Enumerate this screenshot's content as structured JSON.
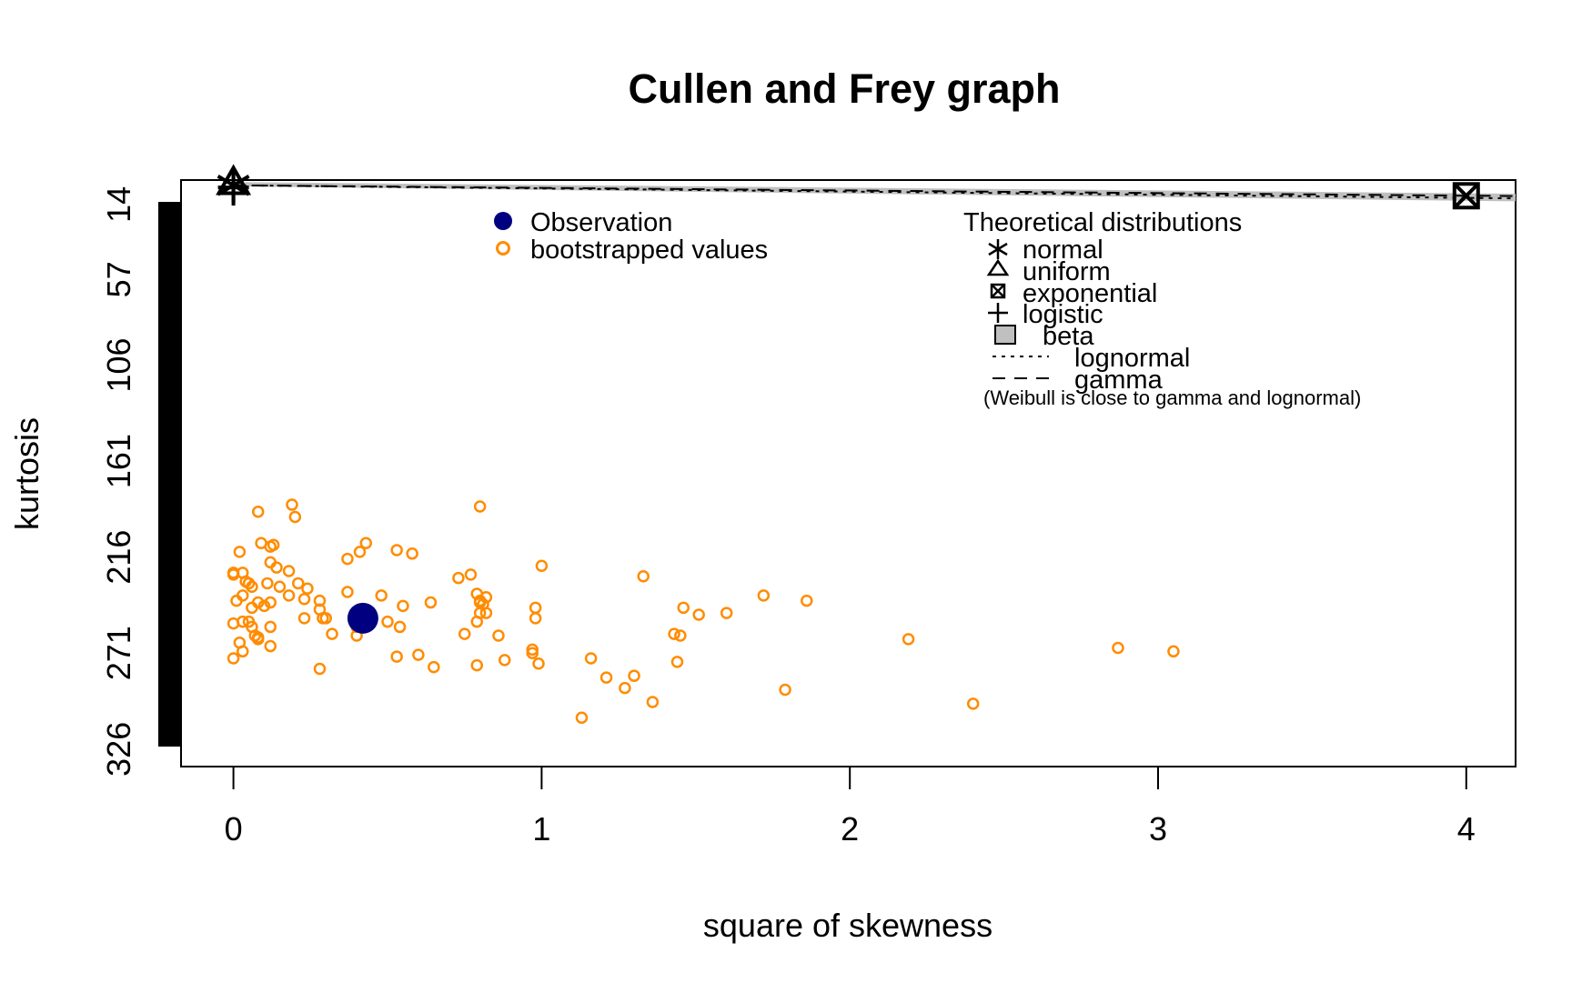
{
  "chart_data": {
    "type": "scatter",
    "title": "Cullen and Frey graph",
    "xlabel": "square of skewness",
    "ylabel": "kurtosis",
    "xlim": [
      -0.17,
      4.16
    ],
    "ylim": [
      336,
      0
    ],
    "x_ticks": [
      0,
      1,
      2,
      3,
      4
    ],
    "x_tick_labels": [
      "0",
      "1",
      "2",
      "3",
      "4"
    ],
    "y_ticks": [
      14,
      57,
      106,
      161,
      216,
      271,
      326
    ],
    "y_tick_labels": [
      "14",
      "57",
      "106",
      "161",
      "216",
      "271",
      "326"
    ],
    "observation": {
      "x": 0.42,
      "y": 251
    },
    "bootstrapped": {
      "color": "#ff8c00",
      "x": [
        0.08,
        0.19,
        0.2,
        0.02,
        0.09,
        0.12,
        0.13,
        0.12,
        0.14,
        0.0,
        0.03,
        0.18,
        0.05,
        0.11,
        0.15,
        0.21,
        0.24,
        0.18,
        0.0,
        0.04,
        0.06,
        0.03,
        0.01,
        0.08,
        0.06,
        0.1,
        0.12,
        0.0,
        0.03,
        0.05,
        0.06,
        0.08,
        0.12,
        0.03,
        0.07,
        0.08,
        0.0,
        0.12,
        0.02,
        0.23,
        0.23,
        0.28,
        0.28,
        0.29,
        0.3,
        0.32,
        0.28,
        0.37,
        0.37,
        0.41,
        0.43,
        0.4,
        0.4,
        0.48,
        0.5,
        0.53,
        0.54,
        0.55,
        0.58,
        0.53,
        0.6,
        0.65,
        0.64,
        0.73,
        0.77,
        0.75,
        0.79,
        0.8,
        0.82,
        0.8,
        0.81,
        0.8,
        0.79,
        0.82,
        0.79,
        0.86,
        0.88,
        0.97,
        0.98,
        0.98,
        0.97,
        0.99,
        1.0,
        0.8,
        1.33,
        1.46,
        1.51,
        1.6,
        1.72,
        1.86,
        1.43,
        1.45,
        1.44,
        1.16,
        1.21,
        1.27,
        1.3,
        1.36,
        1.13,
        1.79,
        2.19,
        2.4,
        2.87,
        3.05
      ],
      "y": [
        190,
        186,
        193,
        213,
        208,
        210,
        209,
        219,
        222,
        225,
        225,
        224,
        231,
        231,
        233,
        231,
        234,
        238,
        226,
        230,
        233,
        238,
        241,
        242,
        245,
        244,
        242,
        254,
        253,
        253,
        256,
        262,
        256,
        270,
        261,
        263,
        274,
        267,
        265,
        240,
        251,
        241,
        246,
        251,
        251,
        260,
        280,
        217,
        236,
        213,
        208,
        261,
        256,
        238,
        253,
        212,
        256,
        244,
        214,
        273,
        272,
        279,
        242,
        228,
        226,
        260,
        237,
        241,
        239,
        242,
        243,
        248,
        253,
        248,
        278,
        261,
        275,
        269,
        245,
        251,
        271,
        277,
        221,
        187,
        227,
        245,
        249,
        248,
        238,
        241,
        260,
        261,
        276,
        274,
        285,
        291,
        284,
        299,
        308,
        292,
        263,
        300,
        268,
        270
      ],
      "radius": 5.5
    },
    "theoretical": {
      "normal": {
        "x": 0,
        "y": 3
      },
      "uniform": {
        "x": 0,
        "y": 1.8
      },
      "exponential": {
        "x": 4,
        "y": 9
      },
      "logistic": {
        "x": 0,
        "y": 4.2
      },
      "beta_region_color": "#c0c0c0",
      "lognormal_end": {
        "x": 4.16,
        "y": 10.5
      },
      "gamma_end": {
        "x": 4.16,
        "y": 9.2
      },
      "grid": false
    },
    "legend_left": {
      "placement": "top-center",
      "entries": [
        {
          "label": "Observation",
          "symbol": "filled-circle",
          "color": "#000080"
        },
        {
          "label": "bootstrapped values",
          "symbol": "open-circle",
          "color": "#ff8c00"
        }
      ]
    },
    "legend_right": {
      "placement": "top-right",
      "title": "Theoretical distributions",
      "entries": [
        {
          "label": "normal",
          "symbol": "asterisk-icon"
        },
        {
          "label": "uniform",
          "symbol": "triangle-icon"
        },
        {
          "label": "exponential",
          "symbol": "boxed-x-icon"
        },
        {
          "label": "logistic",
          "symbol": "plus-icon"
        },
        {
          "label": "beta",
          "symbol": "gray-square-icon"
        },
        {
          "label": "lognormal",
          "symbol": "dotted-line-icon"
        },
        {
          "label": "gamma",
          "symbol": "dashed-line-icon"
        }
      ],
      "note": "(Weibull is close to gamma and lognormal)"
    }
  }
}
